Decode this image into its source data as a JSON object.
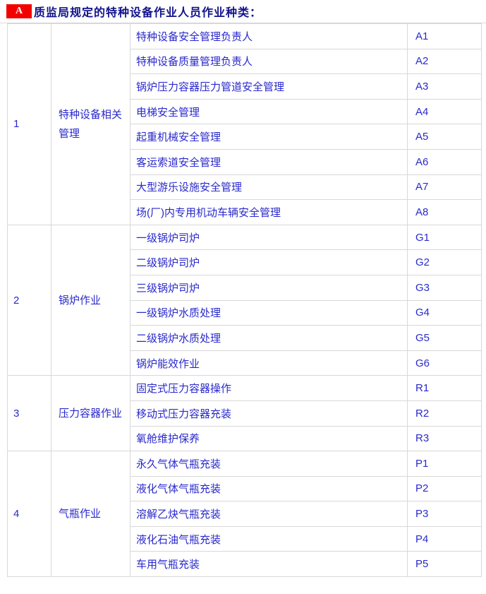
{
  "colors": {
    "border": "#d8d8d8",
    "red": "#f30000",
    "navy": "#12128c",
    "blue": "#2929cc"
  },
  "header": {
    "badge": "A",
    "title": "质监局规定的特种设备作业人员作业种类："
  },
  "table": {
    "groups": [
      {
        "no": "1",
        "category": "特种设备相关管理",
        "jobs": [
          {
            "name": "特种设备安全管理负责人",
            "code": "A1"
          },
          {
            "name": "特种设备质量管理负责人",
            "code": "A2"
          },
          {
            "name": "锅炉压力容器压力管道安全管理",
            "code": "A3"
          },
          {
            "name": "电梯安全管理",
            "code": "A4"
          },
          {
            "name": "起重机械安全管理",
            "code": "A5"
          },
          {
            "name": "客运索道安全管理",
            "code": "A6"
          },
          {
            "name": "大型游乐设施安全管理",
            "code": "A7"
          },
          {
            "name": "场(厂)内专用机动车辆安全管理",
            "code": "A8"
          }
        ]
      },
      {
        "no": "2",
        "category": "锅炉作业",
        "jobs": [
          {
            "name": "一级锅炉司炉",
            "code": "G1"
          },
          {
            "name": "二级锅炉司炉",
            "code": "G2"
          },
          {
            "name": "三级锅炉司炉",
            "code": "G3"
          },
          {
            "name": "一级锅炉水质处理",
            "code": "G4"
          },
          {
            "name": "二级锅炉水质处理",
            "code": "G5"
          },
          {
            "name": "锅炉能效作业",
            "code": "G6"
          }
        ]
      },
      {
        "no": "3",
        "category": "压力容器作业",
        "jobs": [
          {
            "name": "固定式压力容器操作",
            "code": "R1"
          },
          {
            "name": "移动式压力容器充装",
            "code": "R2"
          },
          {
            "name": "氧舱维护保养",
            "code": "R3"
          }
        ]
      },
      {
        "no": "4",
        "category": "气瓶作业",
        "jobs": [
          {
            "name": "永久气体气瓶充装",
            "code": "P1"
          },
          {
            "name": "液化气体气瓶充装",
            "code": "P2"
          },
          {
            "name": "溶解乙炔气瓶充装",
            "code": "P3"
          },
          {
            "name": "液化石油气瓶充装",
            "code": "P4"
          },
          {
            "name": "车用气瓶充装",
            "code": "P5"
          }
        ]
      }
    ]
  }
}
